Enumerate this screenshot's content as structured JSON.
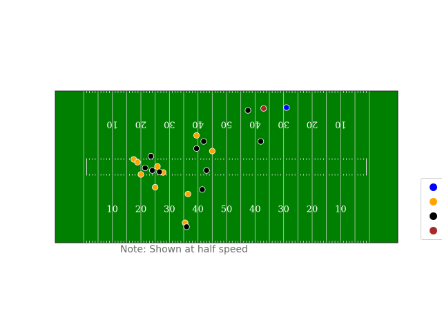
{
  "chart_data": {
    "type": "scatter",
    "title": "",
    "xlim": [
      0,
      120
    ],
    "ylim": [
      0,
      53.3
    ],
    "grid": false,
    "legend_position": "right",
    "field_color": "#008000",
    "line_color": "#d9d9d9",
    "bottom_yard_labels": [
      "10",
      "20",
      "30",
      "40",
      "50",
      "40",
      "30",
      "20",
      "10"
    ],
    "top_yard_labels": [
      "10",
      "20",
      "30",
      "40",
      "50",
      "40",
      "30",
      "20",
      "10"
    ],
    "series": [
      {
        "color": "#0000ff",
        "points": [
          [
            81.0,
            47.5
          ]
        ]
      },
      {
        "color": "#ffa500",
        "points": [
          [
            49.5,
            37.7
          ],
          [
            55.0,
            32.2
          ],
          [
            27.5,
            29.3
          ],
          [
            28.8,
            28.3
          ],
          [
            35.8,
            26.8
          ],
          [
            37.8,
            24.7
          ],
          [
            30.0,
            24.0
          ],
          [
            35.0,
            19.5
          ],
          [
            46.5,
            17.1
          ],
          [
            45.5,
            7.0
          ]
        ]
      },
      {
        "color": "#000000",
        "points": [
          [
            67.5,
            46.5
          ],
          [
            52.0,
            35.6
          ],
          [
            72.0,
            35.6
          ],
          [
            49.5,
            33.1
          ],
          [
            33.5,
            30.4
          ],
          [
            31.5,
            26.3
          ],
          [
            34.0,
            25.4
          ],
          [
            36.5,
            24.9
          ],
          [
            53.0,
            25.4
          ],
          [
            51.5,
            18.7
          ],
          [
            46.0,
            5.6
          ]
        ]
      },
      {
        "color": "#a52a2a",
        "points": [
          [
            73.0,
            47.2
          ]
        ]
      }
    ]
  },
  "annotation": {
    "note": "Note: Shown at half speed"
  }
}
